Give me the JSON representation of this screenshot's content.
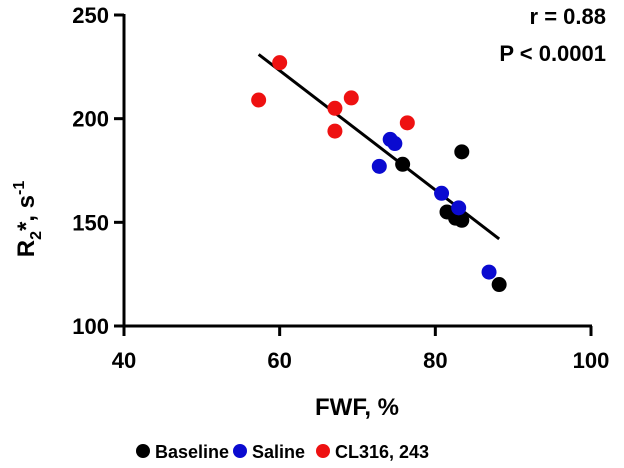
{
  "chart_data": {
    "type": "scatter",
    "xlabel": "FWF, %",
    "ylabel": {
      "base": "R",
      "sub": "2",
      "mid": "*, s",
      "sup": "-1"
    },
    "xlim": [
      40,
      100
    ],
    "ylim": [
      100,
      250
    ],
    "x_ticks": [
      40,
      60,
      80,
      100
    ],
    "y_ticks": [
      100,
      150,
      200,
      250
    ],
    "grid": false,
    "legend_position": "bottom",
    "annotations": {
      "r": "r = 0.88",
      "p": "P < 0.0001"
    },
    "regression_line": {
      "x": [
        57.3,
        88.2
      ],
      "y": [
        231,
        142
      ]
    },
    "series": [
      {
        "name": "Baseline",
        "color": "#000000",
        "points": [
          {
            "x": 75.8,
            "y": 178
          },
          {
            "x": 83.4,
            "y": 184
          },
          {
            "x": 81.5,
            "y": 155
          },
          {
            "x": 82.6,
            "y": 152
          },
          {
            "x": 83.4,
            "y": 151
          },
          {
            "x": 88.2,
            "y": 120
          }
        ]
      },
      {
        "name": "Saline",
        "color": "#0a0ad0",
        "points": [
          {
            "x": 74.2,
            "y": 190
          },
          {
            "x": 74.8,
            "y": 188
          },
          {
            "x": 72.8,
            "y": 177
          },
          {
            "x": 80.8,
            "y": 164
          },
          {
            "x": 83.0,
            "y": 157
          },
          {
            "x": 86.9,
            "y": 126
          }
        ]
      },
      {
        "name": "CL316, 243",
        "color": "#ee1111",
        "points": [
          {
            "x": 60.0,
            "y": 227
          },
          {
            "x": 57.3,
            "y": 209
          },
          {
            "x": 67.1,
            "y": 205
          },
          {
            "x": 69.2,
            "y": 210
          },
          {
            "x": 67.1,
            "y": 194
          },
          {
            "x": 76.4,
            "y": 198
          }
        ]
      }
    ]
  }
}
